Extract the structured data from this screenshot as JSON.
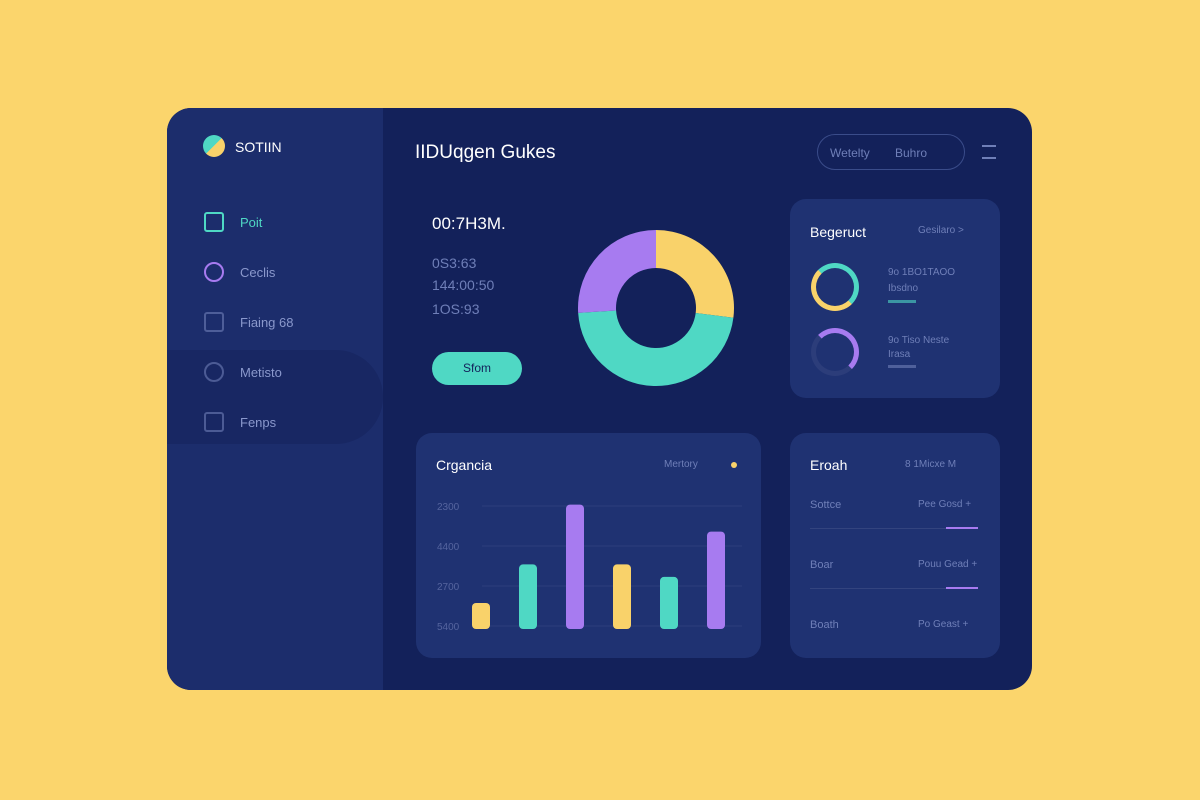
{
  "sidebar": {
    "brand": "SOTIIN",
    "nav": [
      "Poit",
      "Ceclis",
      "Fiaing 68",
      "Metisto",
      "Fenps"
    ]
  },
  "header": {
    "title": "IIDUqgen Gukes",
    "pill": [
      "Wetelty",
      "Buhro"
    ]
  },
  "summary": {
    "time": "00:7H3M.",
    "lines": [
      "0S3:63",
      "144:00:50",
      "1OS:93"
    ],
    "button": "Sfom"
  },
  "donut": {
    "segments": [
      {
        "color": "#f9d26a",
        "value": 27
      },
      {
        "color": "#4fd8c4",
        "value": 47
      },
      {
        "color": "#a77bf0",
        "value": 26
      }
    ]
  },
  "budget_card": {
    "title": "Begeruct",
    "link": "Gesilaro >",
    "rows": [
      [
        "9o 1BO1TAOO",
        "Ibsdno"
      ],
      [
        "9o Tiso Neste",
        "Irasa"
      ]
    ]
  },
  "bar_card": {
    "title": "Crgancia",
    "legend": "Mertory",
    "y_labels": [
      "2300",
      "4400",
      "2700",
      "5400"
    ],
    "ylim": [
      0,
      140
    ],
    "bars": [
      {
        "color": "#f9d26a",
        "value": 27
      },
      {
        "color": "#4fd8c4",
        "value": 67
      },
      {
        "color": "#a77bf0",
        "value": 129
      },
      {
        "color": "#f9d26a",
        "value": 67
      },
      {
        "color": "#4fd8c4",
        "value": 54
      },
      {
        "color": "#a77bf0",
        "value": 101
      }
    ]
  },
  "list_card": {
    "title": "Eroah",
    "meta": "8 1Micxe M",
    "rows": [
      [
        "Sottce",
        "Pee Gosd +"
      ],
      [
        "Boar",
        "Pouu Gead +"
      ],
      [
        "Boath",
        "Po Geast +"
      ]
    ]
  }
}
